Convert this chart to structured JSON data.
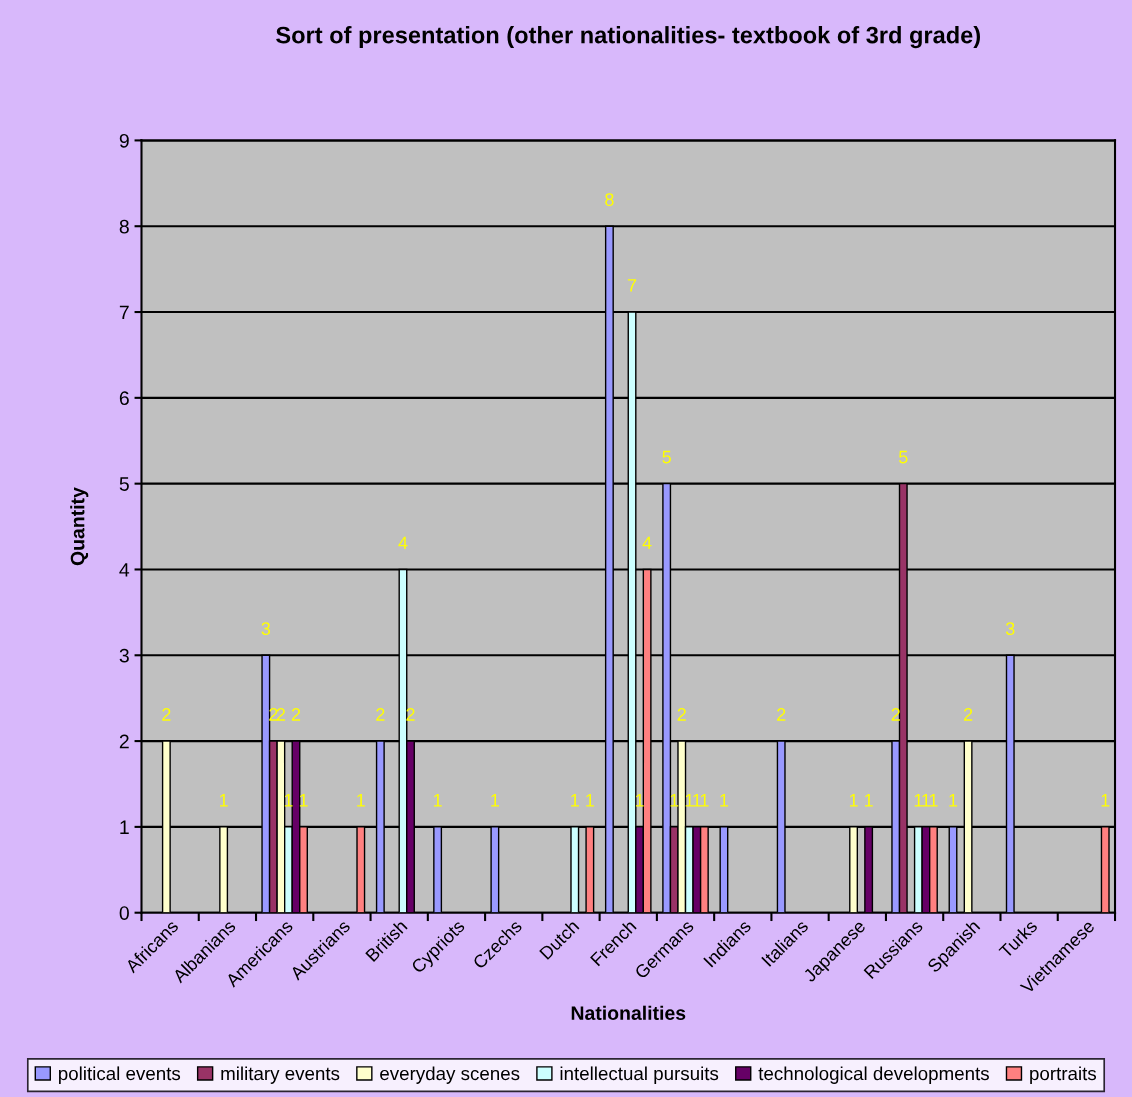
{
  "chart_data": {
    "type": "bar",
    "title": "Sort of presentation (other nationalities- textbook of 3rd grade)",
    "xlabel": "Nationalities",
    "ylabel": "Quantity",
    "categories": [
      "Africans",
      "Albanians",
      "Americans",
      "Austrians",
      "British",
      "Cypriots",
      "Czechs",
      "Dutch",
      "French",
      "Germans",
      "Indians",
      "Italians",
      "Japanese",
      "Russians",
      "Spanish",
      "Turks",
      "Vietnamese"
    ],
    "series": [
      {
        "name": "political events",
        "color": "#9999ff",
        "values": [
          null,
          null,
          3,
          null,
          2,
          1,
          1,
          null,
          8,
          5,
          1,
          2,
          null,
          2,
          1,
          3,
          null
        ]
      },
      {
        "name": "military events",
        "color": "#993366",
        "values": [
          null,
          null,
          2,
          null,
          null,
          null,
          null,
          null,
          null,
          1,
          null,
          null,
          null,
          5,
          null,
          null,
          null
        ]
      },
      {
        "name": "everyday scenes",
        "color": "#ffffcc",
        "values": [
          2,
          1,
          2,
          null,
          null,
          null,
          null,
          null,
          null,
          2,
          null,
          null,
          1,
          null,
          2,
          null,
          null
        ]
      },
      {
        "name": "intellectual pursuits",
        "color": "#ccffff",
        "values": [
          null,
          null,
          1,
          null,
          4,
          null,
          null,
          1,
          7,
          1,
          null,
          null,
          null,
          1,
          null,
          null,
          null
        ]
      },
      {
        "name": "technological developments",
        "color": "#660066",
        "values": [
          null,
          null,
          2,
          null,
          2,
          null,
          null,
          null,
          1,
          1,
          null,
          null,
          1,
          1,
          null,
          null,
          null
        ]
      },
      {
        "name": "portraits",
        "color": "#ff8080",
        "values": [
          null,
          null,
          1,
          1,
          null,
          null,
          null,
          1,
          4,
          1,
          null,
          null,
          null,
          1,
          null,
          null,
          1
        ]
      }
    ],
    "data_labels": true,
    "ylim": [
      0,
      9
    ],
    "yticks": [
      0,
      1,
      2,
      3,
      4,
      5,
      6,
      7,
      8,
      9
    ],
    "grid": "y",
    "legend": "bottom"
  }
}
